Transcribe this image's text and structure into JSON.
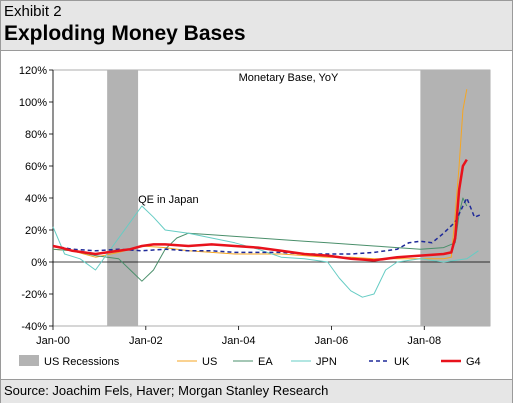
{
  "header": {
    "exhibit": "Exhibit 2",
    "title": "Exploding Money Bases"
  },
  "footer": {
    "source": "Source: Joachim Fels, Haver; Morgan Stanley Research"
  },
  "chart_data": {
    "type": "line",
    "title": "",
    "xlabel": "",
    "ylabel": "",
    "x_ticks": [
      "Jan-00",
      "Jan-02",
      "Jan-04",
      "Jan-06",
      "Jan-08"
    ],
    "y_ticks": [
      -40,
      -20,
      0,
      20,
      40,
      60,
      80,
      100,
      120
    ],
    "y_tick_labels": [
      "-40%",
      "-20%",
      "0%",
      "20%",
      "40%",
      "60%",
      "80%",
      "100%",
      "120%"
    ],
    "ylim": [
      -40,
      120
    ],
    "xlim": [
      "2000-01",
      "2009-06"
    ],
    "grid": false,
    "legend_position": "bottom",
    "annotations": [
      {
        "text": "Monetary Base, YoY",
        "x": "2004-01",
        "y": 113
      },
      {
        "text": "QE in Japan",
        "x": "2001-11",
        "y": 37
      }
    ],
    "recessions": [
      {
        "name": "US Recessions",
        "start": "2001-03",
        "end": "2001-11",
        "color": "#b3b3b3"
      },
      {
        "name": "US Recessions",
        "start": "2007-12",
        "end": "2009-06",
        "color": "#b3b3b3"
      }
    ],
    "series": [
      {
        "name": "US",
        "color": "#f5a623",
        "dash": "none",
        "width": 1,
        "points": [
          [
            "2000-01",
            8
          ],
          [
            "2000-06",
            7
          ],
          [
            "2000-12",
            3
          ],
          [
            "2001-06",
            6
          ],
          [
            "2001-12",
            10
          ],
          [
            "2002-06",
            9
          ],
          [
            "2002-12",
            7
          ],
          [
            "2003-06",
            6
          ],
          [
            "2003-12",
            5
          ],
          [
            "2004-06",
            5
          ],
          [
            "2004-12",
            5
          ],
          [
            "2005-06",
            4
          ],
          [
            "2005-12",
            3
          ],
          [
            "2006-06",
            3
          ],
          [
            "2006-12",
            2
          ],
          [
            "2007-06",
            2
          ],
          [
            "2007-12",
            2
          ],
          [
            "2008-06",
            2
          ],
          [
            "2008-08",
            3
          ],
          [
            "2008-09",
            30
          ],
          [
            "2008-10",
            60
          ],
          [
            "2008-11",
            95
          ],
          [
            "2008-12",
            108
          ]
        ]
      },
      {
        "name": "EA",
        "color": "#4a8f6b",
        "dash": "none",
        "width": 1,
        "points": [
          [
            "2000-01",
            8
          ],
          [
            "2000-06",
            7
          ],
          [
            "2000-12",
            4
          ],
          [
            "2001-06",
            2
          ],
          [
            "2001-09",
            -5
          ],
          [
            "2001-12",
            -12
          ],
          [
            "2002-03",
            -5
          ],
          [
            "2002-06",
            8
          ],
          [
            "2002-09",
            15
          ],
          [
            "2002-12",
            18
          ],
          [
            "2003-06",
            17
          ],
          [
            "2003-12",
            16
          ],
          [
            "2004-06",
            15
          ],
          [
            "2004-12",
            14
          ],
          [
            "2005-06",
            13
          ],
          [
            "2005-12",
            12
          ],
          [
            "2006-06",
            11
          ],
          [
            "2006-12",
            10
          ],
          [
            "2007-06",
            9
          ],
          [
            "2007-12",
            8
          ],
          [
            "2008-06",
            9
          ],
          [
            "2008-09",
            12
          ],
          [
            "2008-10",
            30
          ],
          [
            "2008-11",
            40
          ],
          [
            "2008-12",
            35
          ]
        ]
      },
      {
        "name": "JPN",
        "color": "#66ccc4",
        "dash": "none",
        "width": 1,
        "points": [
          [
            "2000-01",
            22
          ],
          [
            "2000-04",
            5
          ],
          [
            "2000-08",
            2
          ],
          [
            "2000-12",
            -5
          ],
          [
            "2001-03",
            5
          ],
          [
            "2001-06",
            15
          ],
          [
            "2001-09",
            25
          ],
          [
            "2001-12",
            35
          ],
          [
            "2002-03",
            28
          ],
          [
            "2002-06",
            20
          ],
          [
            "2002-12",
            18
          ],
          [
            "2003-06",
            15
          ],
          [
            "2003-12",
            12
          ],
          [
            "2004-06",
            8
          ],
          [
            "2004-12",
            3
          ],
          [
            "2005-06",
            2
          ],
          [
            "2005-12",
            0
          ],
          [
            "2006-03",
            -10
          ],
          [
            "2006-06",
            -18
          ],
          [
            "2006-09",
            -22
          ],
          [
            "2006-12",
            -20
          ],
          [
            "2007-03",
            -5
          ],
          [
            "2007-06",
            0
          ],
          [
            "2007-12",
            2
          ],
          [
            "2008-06",
            0
          ],
          [
            "2008-12",
            2
          ],
          [
            "2009-03",
            7
          ]
        ]
      },
      {
        "name": "UK",
        "color": "#1f2a99",
        "dash": "4,3",
        "width": 1.5,
        "points": [
          [
            "2000-01",
            10
          ],
          [
            "2000-06",
            8
          ],
          [
            "2000-12",
            7
          ],
          [
            "2001-06",
            8
          ],
          [
            "2001-12",
            7
          ],
          [
            "2002-06",
            8
          ],
          [
            "2002-12",
            7
          ],
          [
            "2003-06",
            7
          ],
          [
            "2003-12",
            6
          ],
          [
            "2004-06",
            6
          ],
          [
            "2004-12",
            6
          ],
          [
            "2005-06",
            5
          ],
          [
            "2005-12",
            5
          ],
          [
            "2006-06",
            5
          ],
          [
            "2006-12",
            6
          ],
          [
            "2007-06",
            8
          ],
          [
            "2007-09",
            12
          ],
          [
            "2007-12",
            13
          ],
          [
            "2008-03",
            12
          ],
          [
            "2008-06",
            18
          ],
          [
            "2008-09",
            25
          ],
          [
            "2008-10",
            30
          ],
          [
            "2008-12",
            40
          ],
          [
            "2009-02",
            28
          ],
          [
            "2009-04",
            30
          ]
        ]
      },
      {
        "name": "G4",
        "color": "#e8121c",
        "dash": "none",
        "width": 2.5,
        "points": [
          [
            "2000-01",
            10
          ],
          [
            "2000-03",
            9
          ],
          [
            "2000-06",
            7
          ],
          [
            "2000-09",
            6
          ],
          [
            "2000-12",
            5
          ],
          [
            "2001-03",
            6
          ],
          [
            "2001-06",
            7
          ],
          [
            "2001-09",
            8
          ],
          [
            "2001-12",
            10
          ],
          [
            "2002-03",
            11
          ],
          [
            "2002-06",
            11
          ],
          [
            "2002-12",
            10
          ],
          [
            "2003-06",
            11
          ],
          [
            "2003-12",
            10
          ],
          [
            "2004-06",
            9
          ],
          [
            "2004-12",
            7
          ],
          [
            "2005-06",
            5
          ],
          [
            "2005-12",
            4
          ],
          [
            "2006-06",
            2
          ],
          [
            "2006-12",
            1
          ],
          [
            "2007-06",
            3
          ],
          [
            "2007-12",
            4
          ],
          [
            "2008-06",
            5
          ],
          [
            "2008-08",
            6
          ],
          [
            "2008-09",
            15
          ],
          [
            "2008-10",
            45
          ],
          [
            "2008-11",
            60
          ],
          [
            "2008-12",
            64
          ]
        ]
      }
    ],
    "legend": [
      "US Recessions",
      "US",
      "EA",
      "JPN",
      "UK",
      "G4"
    ]
  }
}
